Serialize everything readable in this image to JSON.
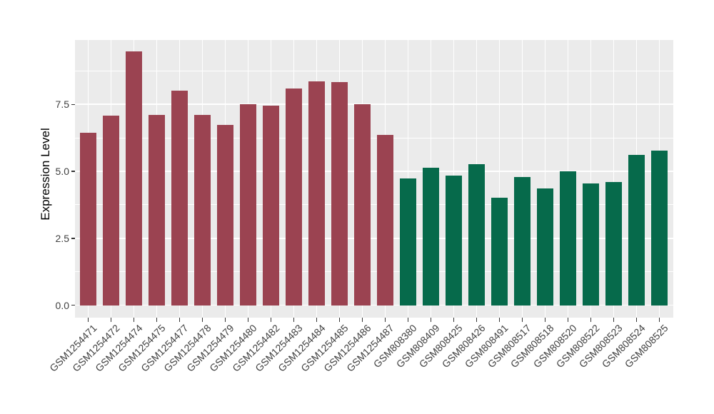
{
  "figure": {
    "background": "#ffffff",
    "panel_background": "#ebebeb",
    "gridline_color": "#ffffff",
    "tick_mark_color": "#333333",
    "axis_text_color": "#404040",
    "axis_title_color": "#000000"
  },
  "chart_data": {
    "type": "bar",
    "title": "",
    "xlabel": "",
    "ylabel": "Expression Level",
    "ylim": [
      -0.47,
      9.95
    ],
    "yticks": [
      0,
      2.5,
      5,
      7.5
    ],
    "ytick_labels": [
      "0.0",
      "2.5",
      "5.0",
      "7.5"
    ],
    "minor_ytick_step": 1.25,
    "grid": "major and minor horizontal white gridlines, vertical white gridline at each category",
    "legend": "none",
    "bar_width_fraction": 0.7,
    "group_colors": [
      "#9b4351",
      "#066a4b"
    ],
    "bars": [
      {
        "label": "GSM1254471",
        "value": 6.43,
        "group": 0
      },
      {
        "label": "GSM1254472",
        "value": 7.08,
        "group": 0
      },
      {
        "label": "GSM1254474",
        "value": 9.47,
        "group": 0
      },
      {
        "label": "GSM1254475",
        "value": 7.1,
        "group": 0
      },
      {
        "label": "GSM1254477",
        "value": 8.02,
        "group": 0
      },
      {
        "label": "GSM1254478",
        "value": 7.12,
        "group": 0
      },
      {
        "label": "GSM1254479",
        "value": 6.74,
        "group": 0
      },
      {
        "label": "GSM1254480",
        "value": 7.52,
        "group": 0
      },
      {
        "label": "GSM1254482",
        "value": 7.46,
        "group": 0
      },
      {
        "label": "GSM1254483",
        "value": 8.1,
        "group": 0
      },
      {
        "label": "GSM1254484",
        "value": 8.37,
        "group": 0
      },
      {
        "label": "GSM1254485",
        "value": 8.34,
        "group": 0
      },
      {
        "label": "GSM1254486",
        "value": 7.51,
        "group": 0
      },
      {
        "label": "GSM1254487",
        "value": 6.36,
        "group": 0
      },
      {
        "label": "GSM808380",
        "value": 4.73,
        "group": 1
      },
      {
        "label": "GSM808409",
        "value": 5.13,
        "group": 1
      },
      {
        "label": "GSM808425",
        "value": 4.84,
        "group": 1
      },
      {
        "label": "GSM808426",
        "value": 5.27,
        "group": 1
      },
      {
        "label": "GSM808491",
        "value": 4.02,
        "group": 1
      },
      {
        "label": "GSM808517",
        "value": 4.79,
        "group": 1
      },
      {
        "label": "GSM808518",
        "value": 4.36,
        "group": 1
      },
      {
        "label": "GSM808520",
        "value": 5.0,
        "group": 1
      },
      {
        "label": "GSM808522",
        "value": 4.56,
        "group": 1
      },
      {
        "label": "GSM808523",
        "value": 4.59,
        "group": 1
      },
      {
        "label": "GSM808524",
        "value": 5.61,
        "group": 1
      },
      {
        "label": "GSM808525",
        "value": 5.77,
        "group": 1
      }
    ]
  }
}
